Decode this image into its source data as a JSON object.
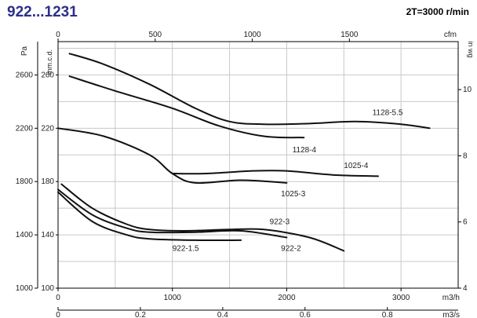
{
  "header": {
    "title": "922...1231",
    "speed_label": "2T=3000 r/min"
  },
  "chart_data": {
    "type": "line",
    "axes": {
      "x_flow": {
        "unit": "m3/h",
        "range": [
          0,
          3500
        ],
        "ticks": [
          0,
          1000,
          2000,
          3000
        ],
        "tick_labels": [
          "0",
          "1000",
          "2000",
          "3000"
        ]
      },
      "x_cfm": {
        "unit": "cfm",
        "range": [
          0,
          2060
        ],
        "ticks": [
          0,
          500,
          1000,
          1500
        ],
        "tick_labels": [
          "0",
          "500",
          "1000",
          "1500"
        ]
      },
      "x_m3s": {
        "unit": "m3/s",
        "range": [
          0,
          0.972
        ],
        "ticks": [
          0,
          0.2,
          0.4,
          0.6,
          0.8
        ],
        "tick_labels": [
          "0",
          "0.2",
          "0.4",
          "0.6",
          "0.8"
        ]
      },
      "y_pa": {
        "unit": "Pa",
        "range": [
          1000,
          2850
        ],
        "ticks": [
          1000,
          1400,
          1800,
          2200,
          2600
        ],
        "tick_labels": [
          "1000",
          "1400",
          "1800",
          "2200",
          "2600"
        ]
      },
      "y_mmcd": {
        "unit": "mm.c.d.",
        "range": [
          100,
          285
        ],
        "ticks": [
          100,
          140,
          180,
          220,
          260
        ],
        "tick_labels": [
          "100",
          "140",
          "180",
          "220",
          "260"
        ]
      },
      "y_inwg": {
        "unit": "in wg",
        "range": [
          4,
          11.45
        ],
        "ticks": [
          4,
          6,
          8,
          10
        ],
        "tick_labels": [
          "4",
          "6",
          "8",
          "10"
        ]
      }
    },
    "grid": true,
    "series": [
      {
        "name": "1128-5.5",
        "x": [
          100,
          400,
          800,
          1200,
          1500,
          1800,
          2200,
          2600,
          3000,
          3250
        ],
        "y": [
          2760,
          2680,
          2530,
          2350,
          2250,
          2230,
          2235,
          2250,
          2230,
          2200
        ]
      },
      {
        "name": "1128-4",
        "x": [
          100,
          500,
          1000,
          1400,
          1800,
          2150
        ],
        "y": [
          2590,
          2480,
          2350,
          2220,
          2140,
          2130
        ]
      },
      {
        "name": "1025-4",
        "x": [
          1000,
          1300,
          1700,
          2000,
          2400,
          2800
        ],
        "y": [
          1860,
          1860,
          1880,
          1880,
          1850,
          1840
        ]
      },
      {
        "name": "1025-3",
        "x": [
          0,
          400,
          800,
          1000,
          1200,
          1600,
          2000
        ],
        "y": [
          2200,
          2140,
          2000,
          1860,
          1790,
          1810,
          1790
        ]
      },
      {
        "name": "922-3",
        "x": [
          30,
          300,
          600,
          800,
          1100,
          1500,
          1800,
          2200,
          2500
        ],
        "y": [
          1780,
          1600,
          1480,
          1440,
          1430,
          1440,
          1440,
          1380,
          1280
        ]
      },
      {
        "name": "922-2",
        "x": [
          0,
          300,
          600,
          800,
          1200,
          1600,
          2000
        ],
        "y": [
          1740,
          1550,
          1450,
          1420,
          1420,
          1430,
          1380
        ]
      },
      {
        "name": "922-1.5",
        "x": [
          0,
          300,
          600,
          800,
          1200,
          1600
        ],
        "y": [
          1720,
          1500,
          1400,
          1370,
          1360,
          1360
        ]
      }
    ],
    "annotations": [
      {
        "text": "1128-5.5",
        "x": 2750,
        "y": 2300
      },
      {
        "text": "1128-4",
        "x": 2050,
        "y": 2020
      },
      {
        "text": "1025-4",
        "x": 2500,
        "y": 1900
      },
      {
        "text": "1025-3",
        "x": 1950,
        "y": 1690
      },
      {
        "text": "922-3",
        "x": 1850,
        "y": 1480
      },
      {
        "text": "922-2",
        "x": 1950,
        "y": 1280
      },
      {
        "text": "922-1.5",
        "x": 1000,
        "y": 1280
      }
    ]
  }
}
